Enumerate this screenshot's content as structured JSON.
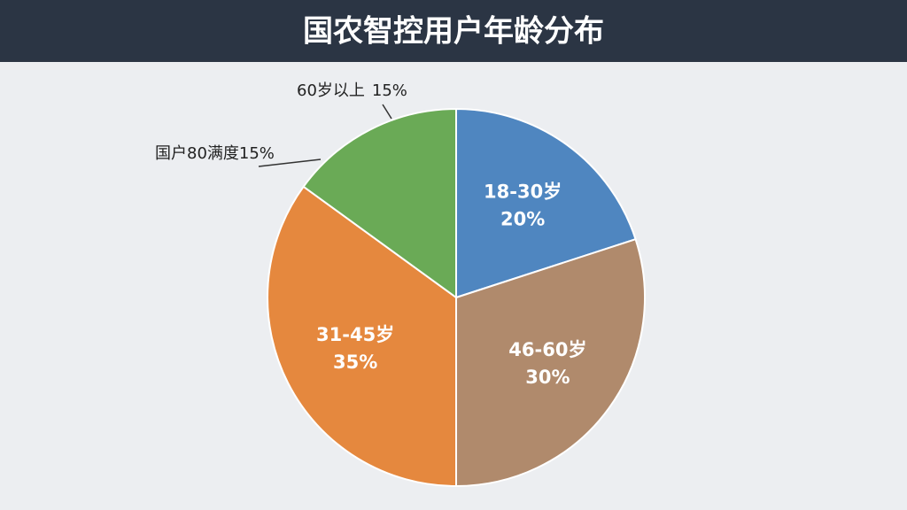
{
  "chart_data": {
    "type": "pie",
    "title": "国农智控用户年龄分布",
    "categories": [
      "18-30岁",
      "46-60岁",
      "31-45岁",
      "60岁以上"
    ],
    "values": [
      20,
      30,
      35,
      15
    ],
    "value_labels": [
      "20%",
      "30%",
      "35%",
      "15%"
    ],
    "colors": [
      "#4f86c0",
      "#b08a6c",
      "#e5883e",
      "#6aaa56"
    ],
    "annotation": "国户80满度15%"
  }
}
